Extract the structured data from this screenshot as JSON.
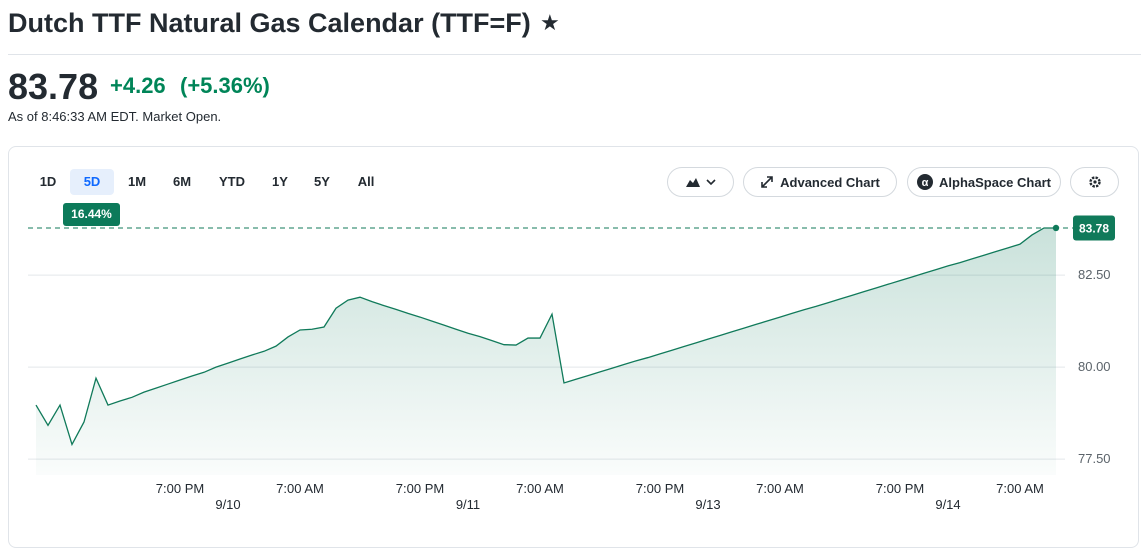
{
  "header": {
    "title": "Dutch TTF Natural Gas Calendar (TTF=F)"
  },
  "quote": {
    "price": "83.78",
    "change": "+4.26",
    "change_pct": "(+5.36%)",
    "as_of": "As of 8:46:33 AM EDT. Market Open."
  },
  "toolbar": {
    "ranges": [
      "1D",
      "5D",
      "1M",
      "6M",
      "YTD",
      "1Y",
      "5Y",
      "All"
    ],
    "range_change": "16.44%",
    "buttons": [
      "Advanced Chart",
      "AlphaSpace Chart"
    ]
  },
  "chart_data": {
    "type": "area",
    "color": "#107a5a",
    "categories": [
      null,
      null,
      null,
      null,
      null,
      null,
      null,
      null,
      null,
      null,
      null,
      null,
      "7:00 PM",
      null,
      null,
      null,
      null,
      null,
      null,
      null,
      null,
      null,
      "7:00 AM",
      null,
      null,
      null,
      null,
      null,
      null,
      null,
      null,
      null,
      "7:00 PM",
      null,
      null,
      null,
      null,
      null,
      null,
      null,
      null,
      null,
      "7:00 AM",
      null,
      null,
      null,
      null,
      null,
      null,
      null,
      null,
      null,
      "7:00 PM",
      null,
      null,
      null,
      null,
      null,
      null,
      null,
      null,
      null,
      "7:00 AM",
      null,
      null,
      null,
      null,
      null,
      null,
      null,
      null,
      null,
      "7:00 PM",
      null,
      null,
      null,
      null,
      null,
      null,
      null,
      null,
      null,
      "7:00 AM",
      null,
      null,
      null
    ],
    "dates": [
      null,
      null,
      null,
      null,
      null,
      null,
      null,
      null,
      null,
      null,
      null,
      null,
      null,
      null,
      null,
      null,
      "9/10",
      null,
      null,
      null,
      null,
      null,
      null,
      null,
      null,
      null,
      null,
      null,
      null,
      null,
      null,
      null,
      null,
      null,
      null,
      null,
      "9/11",
      null,
      null,
      null,
      null,
      null,
      null,
      null,
      null,
      null,
      null,
      null,
      null,
      null,
      null,
      null,
      null,
      null,
      null,
      null,
      "9/13",
      null,
      null,
      null,
      null,
      null,
      null,
      null,
      null,
      null,
      null,
      null,
      null,
      null,
      null,
      null,
      null,
      null,
      null,
      null,
      "9/14",
      null,
      null,
      null,
      null,
      null,
      null,
      null,
      null,
      null
    ],
    "values": [
      78.97,
      78.42,
      78.97,
      77.9,
      78.51,
      79.7,
      78.97,
      79.08,
      79.18,
      79.32,
      79.43,
      79.54,
      79.65,
      79.76,
      79.86,
      80.0,
      80.11,
      80.22,
      80.33,
      80.43,
      80.57,
      80.82,
      81.01,
      81.03,
      81.09,
      81.6,
      81.82,
      81.9,
      81.78,
      81.67,
      81.57,
      81.46,
      81.36,
      81.25,
      81.14,
      81.03,
      80.92,
      80.83,
      80.72,
      80.61,
      80.6,
      80.79,
      80.79,
      81.44,
      79.57,
      79.67,
      79.77,
      79.87,
      79.97,
      80.07,
      80.17,
      80.26,
      80.36,
      80.46,
      80.56,
      80.66,
      80.76,
      80.86,
      80.96,
      81.06,
      81.16,
      81.26,
      81.36,
      81.46,
      81.56,
      81.65,
      81.75,
      81.85,
      81.95,
      82.05,
      82.15,
      82.25,
      82.35,
      82.45,
      82.55,
      82.65,
      82.75,
      82.84,
      82.94,
      83.04,
      83.14,
      83.24,
      83.34,
      83.59,
      83.78,
      83.78
    ],
    "ylim": [
      77.07,
      84.54
    ],
    "yticks": [
      {
        "value": 77.5,
        "label": "77.50"
      },
      {
        "value": 80,
        "label": "80.00"
      },
      {
        "value": 82.5,
        "label": "82.50"
      }
    ],
    "grid": true,
    "reference_line": 83.78
  }
}
